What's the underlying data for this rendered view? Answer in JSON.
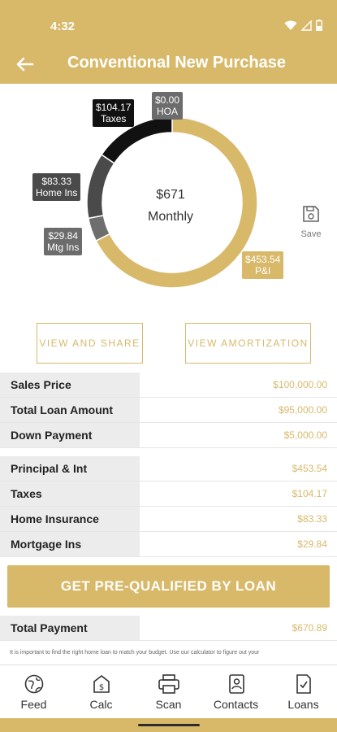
{
  "status_bar": {
    "time": "4:32"
  },
  "app_bar": {
    "title": "Conventional New Purchase"
  },
  "chart_data": {
    "type": "pie",
    "center_value": "$671",
    "center_label": "Monthly",
    "slices": [
      {
        "name": "P&I",
        "label": "$453.54\nP&I",
        "value": 453.54,
        "color": "#d8b96a"
      },
      {
        "name": "Mtg Ins",
        "label": "$29.84\nMtg Ins",
        "value": 29.84,
        "color": "#6e6e6e"
      },
      {
        "name": "Home Ins",
        "label": "$83.33\nHome Ins",
        "value": 83.33,
        "color": "#4a4a4a"
      },
      {
        "name": "Taxes",
        "label": "$104.17\nTaxes",
        "value": 104.17,
        "color": "#111111"
      },
      {
        "name": "HOA",
        "label": "$0.00\nHOA",
        "value": 0.0,
        "color": "#777777"
      }
    ]
  },
  "save": {
    "label": "Save"
  },
  "buttons": {
    "view_share": "VIEW AND SHARE",
    "view_amortization": "VIEW AMORTIZATION",
    "prequalify": "GET PRE-QUALIFIED BY LOAN"
  },
  "loan_rows": [
    {
      "label": "Sales Price",
      "value": "$100,000.00"
    },
    {
      "label": "Total Loan Amount",
      "value": "$95,000.00"
    },
    {
      "label": "Down Payment",
      "value": "$5,000.00"
    }
  ],
  "payment_rows": [
    {
      "label": "Principal & Int",
      "value": "$453.54"
    },
    {
      "label": "Taxes",
      "value": "$104.17"
    },
    {
      "label": "Home Insurance",
      "value": "$83.33"
    },
    {
      "label": "Mortgage Ins",
      "value": "$29.84"
    }
  ],
  "total": {
    "label": "Total Payment",
    "value": "$670.89"
  },
  "disclaimer": "It is important to find the right home loan to match your budget. Use our calculator to figure out your",
  "bottom_nav": [
    {
      "label": "Feed",
      "icon": "globe-icon"
    },
    {
      "label": "Calc",
      "icon": "calculator-icon"
    },
    {
      "label": "Scan",
      "icon": "printer-icon"
    },
    {
      "label": "Contacts",
      "icon": "contacts-icon"
    },
    {
      "label": "Loans",
      "icon": "document-icon"
    }
  ]
}
